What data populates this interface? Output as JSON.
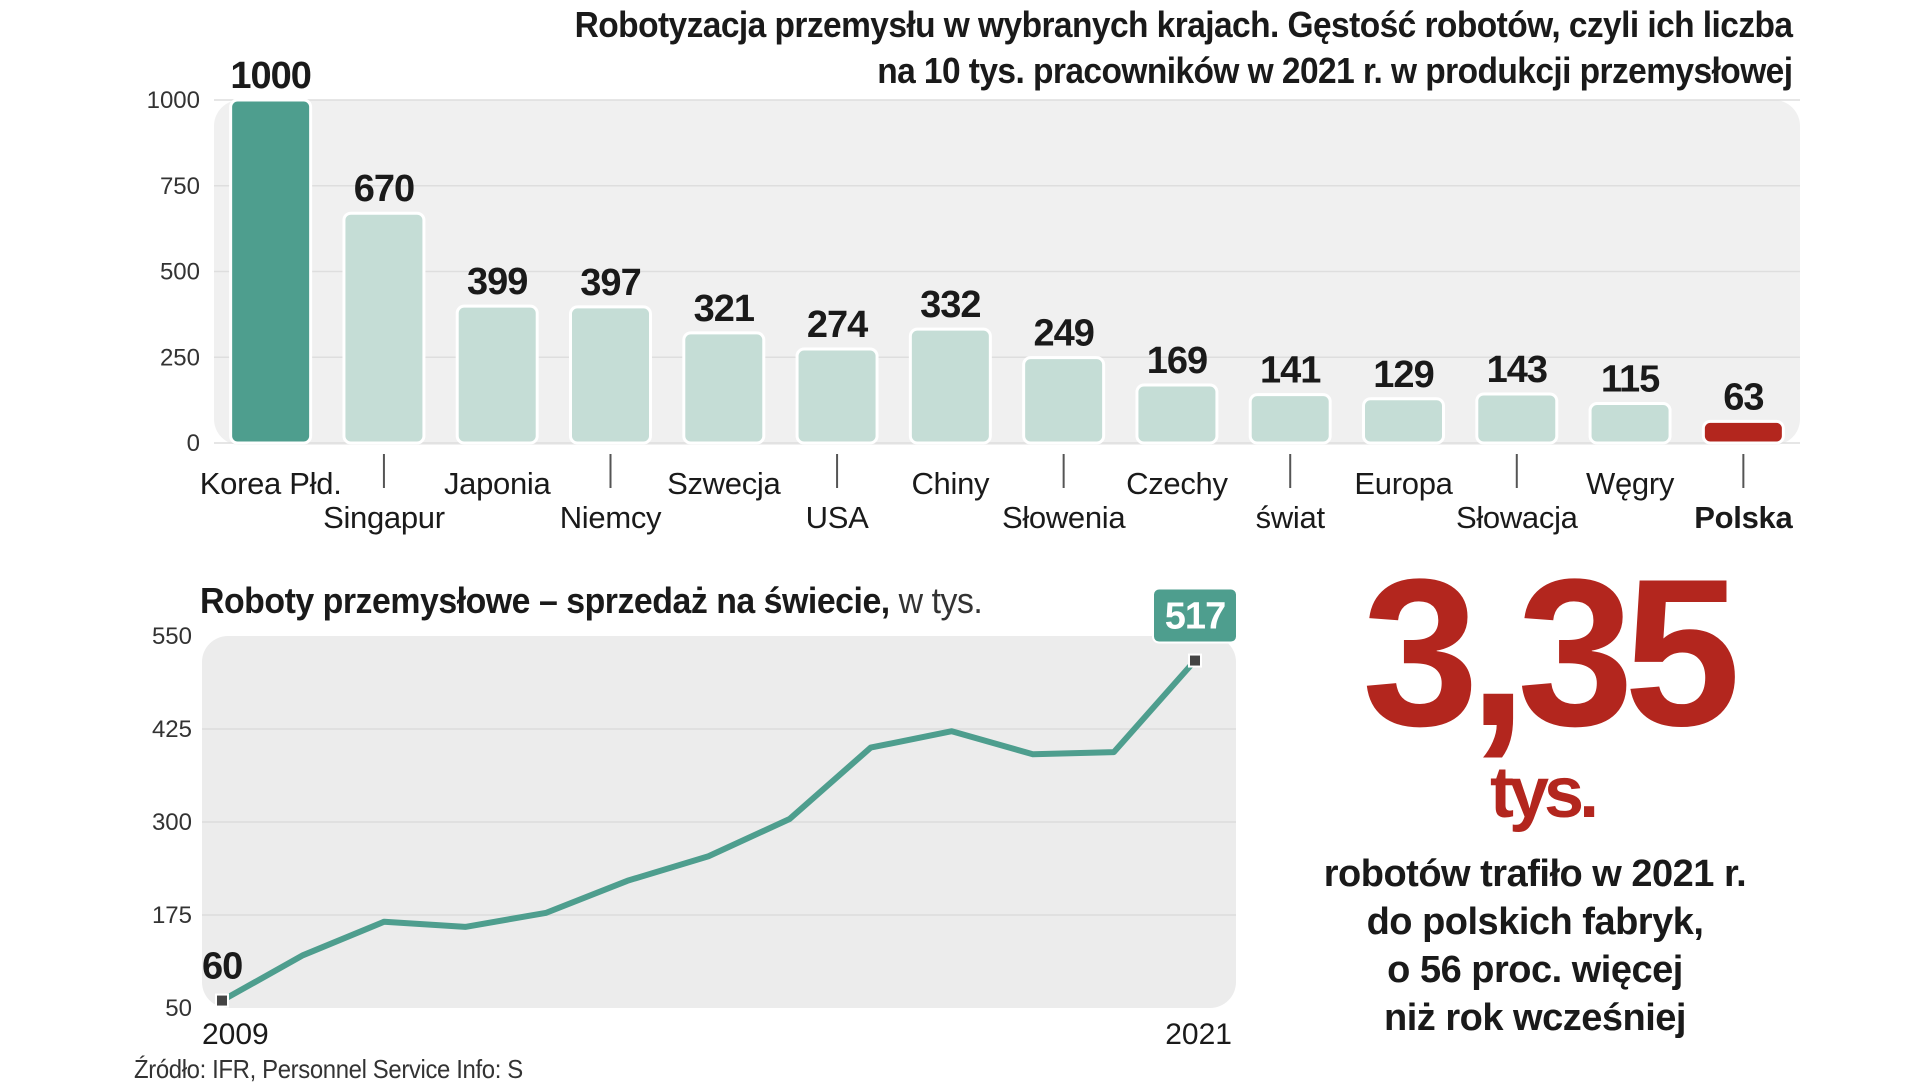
{
  "chart_data": [
    {
      "type": "bar",
      "title": "Robotyzacja przemysłu w wybranych krajach. Gęstość robotów, czyli ich liczba na 10 tys. pracowników w 2021 r. w produkcji przemysłowej",
      "title_lines": [
        "Robotyzacja przemysłu w wybranych krajach. Gęstość robotów, czyli ich liczba",
        "na 10 tys. pracowników w 2021 r. w produkcji przemysłowej"
      ],
      "categories": [
        "Korea Płd.",
        "Singapur",
        "Japonia",
        "Niemcy",
        "Szwecja",
        "USA",
        "Chiny",
        "Słowenia",
        "Czechy",
        "świat",
        "Europa",
        "Słowacja",
        "Węgry",
        "Polska"
      ],
      "values": [
        1000,
        670,
        399,
        397,
        321,
        274,
        332,
        249,
        169,
        141,
        129,
        143,
        115,
        63
      ],
      "data_labels": [
        "1000",
        "670",
        "399",
        "397",
        "321",
        "274",
        "332",
        "249",
        "169",
        "141",
        "129",
        "143",
        "115",
        "63"
      ],
      "yticks": [
        "0",
        "250",
        "500",
        "750",
        "1000"
      ],
      "ylim": [
        0,
        1000
      ],
      "grid": true,
      "colors": {
        "highlight_top": "#4e9e8e",
        "default": "#c5ddd6",
        "highlight_bottom": "#b3261e",
        "plot_bg": "#f0f0f0"
      }
    },
    {
      "type": "line",
      "title": "Roboty przemysłowe – sprzedaż na świecie,",
      "title_suffix": "w tys.",
      "x": [
        2009,
        2010,
        2011,
        2012,
        2013,
        2014,
        2015,
        2016,
        2017,
        2018,
        2019,
        2020,
        2021
      ],
      "y": [
        60,
        121,
        166,
        159,
        178,
        221,
        254,
        304,
        400,
        422,
        391,
        394,
        517
      ],
      "xtick_labels": [
        "2009",
        "2021"
      ],
      "yticks": [
        "50",
        "175",
        "300",
        "425",
        "550"
      ],
      "ylim": [
        50,
        550
      ],
      "start_label": "60",
      "end_label": "517",
      "grid": true,
      "colors": {
        "line": "#4e9e8e",
        "end_badge": "#4e9e8e",
        "plot_bg": "#ececec"
      }
    }
  ],
  "callout": {
    "number": "3,35",
    "unit": "tys.",
    "lines": [
      "robotów trafiło w 2021 r.",
      "do polskich fabryk,",
      "o 56 proc. więcej",
      "niż rok wcześniej"
    ],
    "color": "#b3261e"
  },
  "source": "Źródło: IFR,  Personnel Service   Info: S"
}
